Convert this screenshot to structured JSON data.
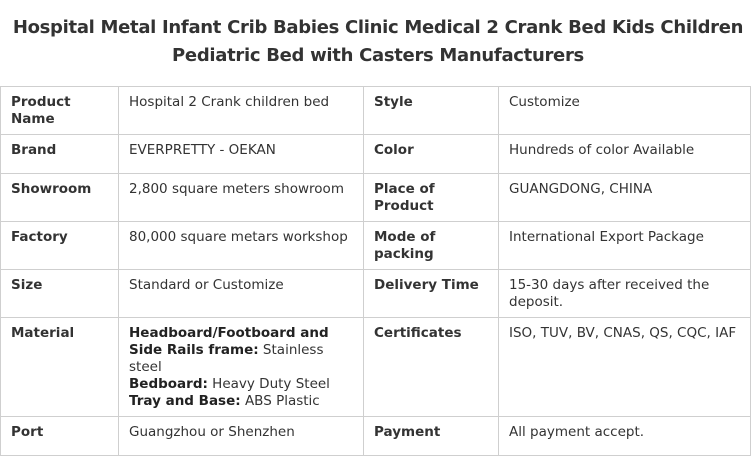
{
  "title": {
    "line1": "Hospital Metal Infant Crib Babies Clinic Medical 2 Crank Bed Kids Children",
    "line2": "Pediatric Bed with Casters Manufacturers"
  },
  "rows": [
    {
      "k1": "Product Name",
      "v1": "Hospital 2 Crank children bed",
      "k2": "Style",
      "v2": "Customize"
    },
    {
      "k1": "Brand",
      "v1": "EVERPRETTY - OEKAN",
      "k2": "Color",
      "v2": "Hundreds of color Available"
    },
    {
      "k1": "Showroom",
      "v1": "2,800 square meters showroom",
      "k2": "Place of Product",
      "v2": "GUANGDONG, CHINA"
    },
    {
      "k1": "Factory",
      "v1": "80,000 square metars workshop",
      "k2": "Mode of packing",
      "v2": "International Export Package"
    },
    {
      "k1": "Size",
      "v1": "Standard or Customize",
      "k2": "Delivery Time",
      "v2": "15-30 days after received the deposit."
    },
    {
      "k1": "Material",
      "k2": "Certificates",
      "v2": "ISO, TUV, BV, CNAS, QS, CQC, IAF"
    },
    {
      "k1": "Port",
      "v1": "Guangzhou or Shenzhen",
      "k2": "Payment",
      "v2": "All payment accept."
    }
  ],
  "material": {
    "line1_bold": "Headboard/Footboard and Side Rails frame:",
    "line1_text": " Stainless steel",
    "line2_bold": "Bedboard:",
    "line2_text": " Heavy Duty Steel",
    "line3_bold": "Tray and Base:",
    "line3_text": " ABS Plastic"
  }
}
